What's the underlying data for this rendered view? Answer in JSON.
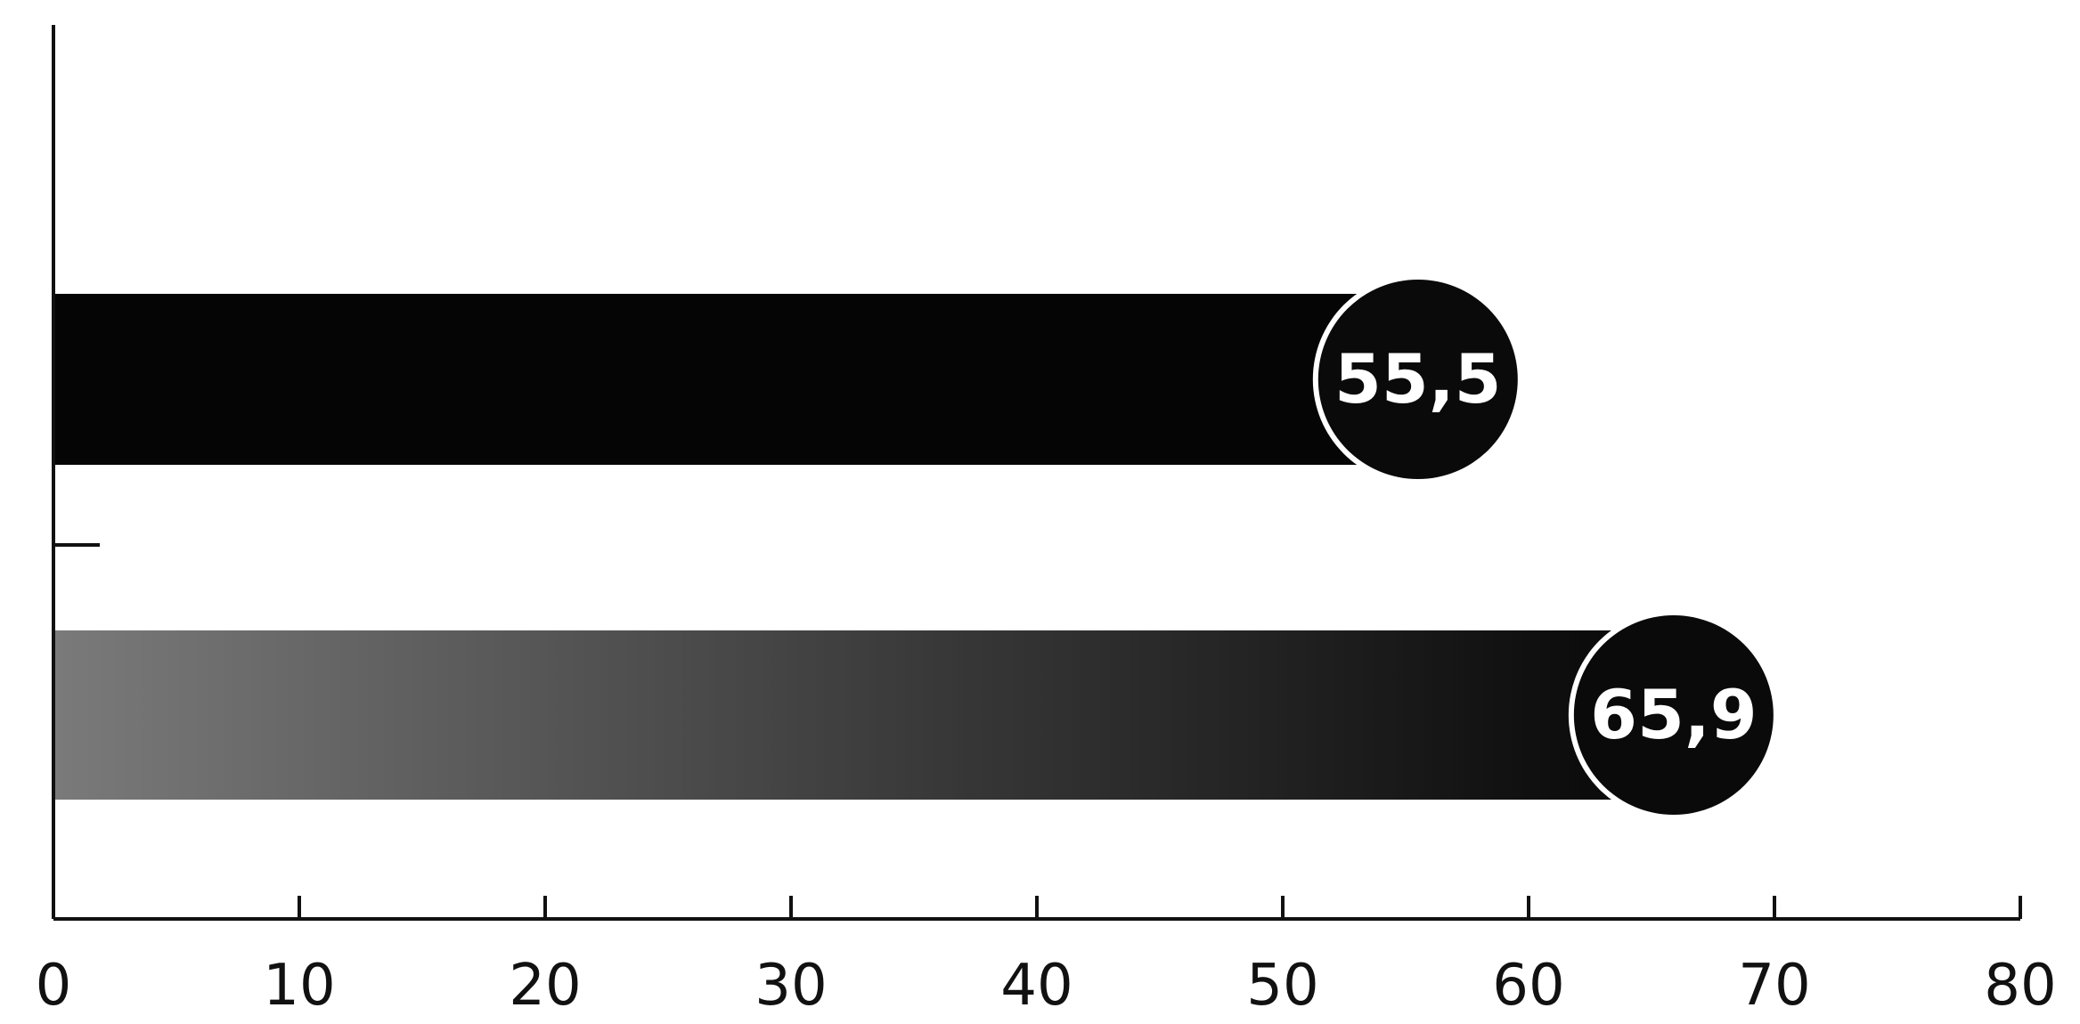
{
  "chart_data": {
    "type": "bar",
    "orientation": "horizontal",
    "categories": [
      "",
      ""
    ],
    "values": [
      55.5,
      65.9
    ],
    "value_labels": [
      "55,5",
      "65,9"
    ],
    "xlim": [
      0,
      80
    ],
    "x_ticks": [
      0,
      10,
      20,
      30,
      40,
      50,
      60,
      70,
      80
    ],
    "x_tick_labels": [
      "0",
      "10",
      "20",
      "30",
      "40",
      "50",
      "60",
      "70",
      "80"
    ],
    "title": "",
    "xlabel": "",
    "ylabel": "",
    "grid": false,
    "legend": "none",
    "bar_colors": [
      "#050505",
      "#6a6a6a"
    ],
    "bar_end_color": "#0a0a0a",
    "badge_color": "#0a0a0a",
    "label_color": "#ffffff"
  }
}
